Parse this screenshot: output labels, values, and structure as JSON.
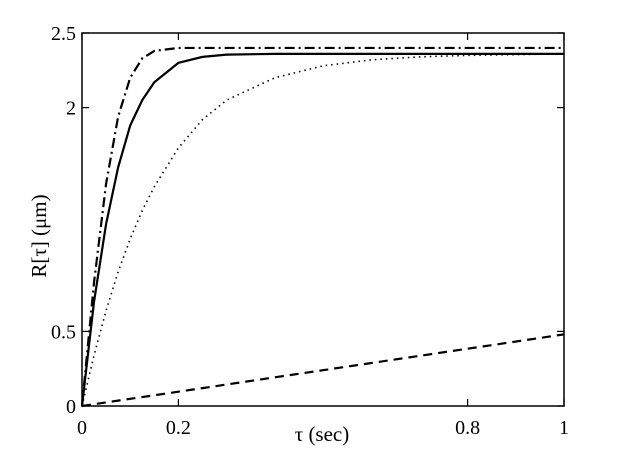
{
  "chart_data": {
    "type": "line",
    "xlabel": "τ  (sec)",
    "ylabel": "R[τ] (μm)",
    "xlim": [
      0,
      1
    ],
    "ylim": [
      0,
      2.5
    ],
    "x_ticks": [
      0,
      0.2,
      0.8,
      1
    ],
    "x_tick_labels": [
      "0",
      "0.2",
      "0.8",
      "1"
    ],
    "y_ticks": [
      0,
      0.5,
      2,
      2.5
    ],
    "y_tick_labels": [
      "0",
      "0.5",
      "2",
      "2.5"
    ],
    "grid": false,
    "legend": "none",
    "x": [
      0,
      0.025,
      0.05,
      0.075,
      0.1,
      0.125,
      0.15,
      0.2,
      0.25,
      0.3,
      0.4,
      0.5,
      0.6,
      0.7,
      0.8,
      0.9,
      1.0
    ],
    "series": [
      {
        "style": "dashdot",
        "color": "#000000",
        "values": [
          0,
          0.83,
          1.49,
          1.94,
          2.2,
          2.33,
          2.38,
          2.4,
          2.4,
          2.4,
          2.4,
          2.4,
          2.4,
          2.4,
          2.4,
          2.4,
          2.4
        ]
      },
      {
        "style": "solid",
        "color": "#000000",
        "values": [
          0,
          0.7,
          1.22,
          1.6,
          1.88,
          2.05,
          2.17,
          2.3,
          2.34,
          2.355,
          2.36,
          2.36,
          2.36,
          2.36,
          2.36,
          2.36,
          2.36
        ]
      },
      {
        "style": "dotted",
        "color": "#000000",
        "values": [
          0,
          0.34,
          0.64,
          0.9,
          1.12,
          1.31,
          1.47,
          1.73,
          1.92,
          2.05,
          2.2,
          2.28,
          2.32,
          2.34,
          2.35,
          2.355,
          2.36
        ]
      },
      {
        "style": "dashed",
        "color": "#000000",
        "values": [
          0,
          0.012,
          0.024,
          0.036,
          0.048,
          0.06,
          0.072,
          0.096,
          0.12,
          0.144,
          0.192,
          0.24,
          0.288,
          0.336,
          0.384,
          0.432,
          0.48
        ]
      }
    ]
  }
}
